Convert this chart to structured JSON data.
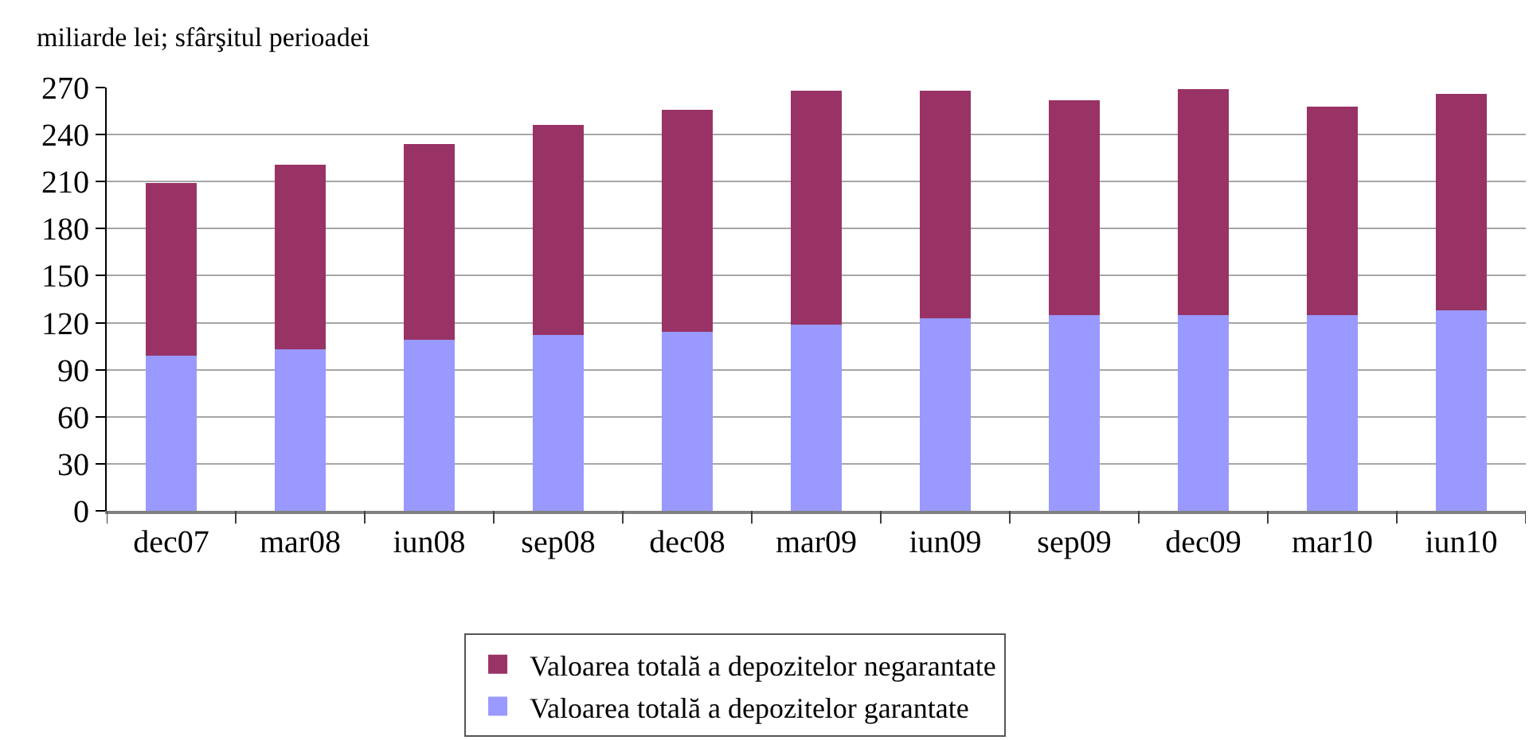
{
  "chart_data": {
    "type": "bar",
    "ylabel": "miliarde lei; sfârşitul perioadei",
    "categories": [
      "dec07",
      "mar08",
      "iun08",
      "sep08",
      "dec08",
      "mar09",
      "iun09",
      "sep09",
      "dec09",
      "mar10",
      "iun10"
    ],
    "series": [
      {
        "name": "Valoarea totală a depozitelor garantate",
        "color": "#9999ff",
        "values": [
          99,
          103,
          109,
          112,
          114,
          119,
          123,
          125,
          125,
          125,
          128
        ]
      },
      {
        "name": "Valoarea totală a depozitelor negarantate",
        "color": "#993366",
        "values": [
          110,
          118,
          125,
          134,
          142,
          149,
          145,
          137,
          144,
          133,
          138
        ]
      }
    ],
    "stacked": true,
    "ylim": [
      0,
      270
    ],
    "yticks": [
      0,
      30,
      60,
      90,
      120,
      150,
      180,
      210,
      240,
      270
    ],
    "grid": "y",
    "legend": "bottom"
  }
}
